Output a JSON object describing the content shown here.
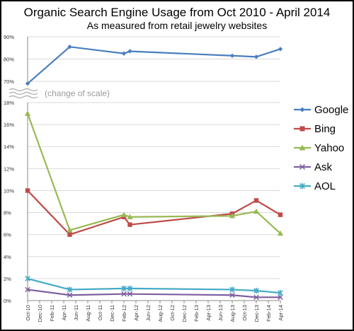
{
  "chart_data": {
    "type": "line",
    "title": "Organic Search Engine Usage from Oct 2010 - April 2014",
    "subtitle": "As measured from retail jewelry websites",
    "scale_break_note": "(change of scale)",
    "x": [
      "Oct-10",
      "Dec-10",
      "Feb-11",
      "Apr-11",
      "Jun-11",
      "Aug-11",
      "Oct-11",
      "Dec-11",
      "Feb-12",
      "Apr-12",
      "Jun-12",
      "Aug-12",
      "Oct-12",
      "Dec-12",
      "Feb-13",
      "Apr-13",
      "Jun-13",
      "Aug-13",
      "Oct-13",
      "Dec-13",
      "Feb-14",
      "Apr-14"
    ],
    "upper_axis": {
      "ylim": [
        70,
        90
      ],
      "ticks": [
        "70%",
        "80%",
        "90%"
      ]
    },
    "lower_axis": {
      "ylim": [
        0,
        18
      ],
      "ticks": [
        "0%",
        "2%",
        "4%",
        "6%",
        "8%",
        "10%",
        "12%",
        "14%",
        "16%",
        "18%"
      ]
    },
    "series": [
      {
        "name": "Google",
        "color": "#4a7ebf",
        "marker": "diamond",
        "axis": "upper",
        "points": [
          [
            "Oct-10",
            69.0
          ],
          [
            "May-11",
            85.5
          ],
          [
            "Feb-12",
            82.5
          ],
          [
            "Mar-12",
            83.5
          ],
          [
            "Aug-13",
            81.5
          ],
          [
            "Dec-13",
            81.0
          ],
          [
            "Apr-14",
            84.5
          ]
        ]
      },
      {
        "name": "Bing",
        "color": "#be4b48",
        "marker": "square",
        "axis": "lower",
        "points": [
          [
            "Oct-10",
            10.0
          ],
          [
            "May-11",
            6.0
          ],
          [
            "Feb-12",
            7.6
          ],
          [
            "Mar-12",
            6.9
          ],
          [
            "Aug-13",
            7.9
          ],
          [
            "Dec-13",
            9.1
          ],
          [
            "Apr-14",
            7.8
          ]
        ]
      },
      {
        "name": "Yahoo",
        "color": "#98b954",
        "marker": "triangle",
        "axis": "lower",
        "points": [
          [
            "Oct-10",
            17.0
          ],
          [
            "May-11",
            6.4
          ],
          [
            "Feb-12",
            7.8
          ],
          [
            "Mar-12",
            7.6
          ],
          [
            "Aug-13",
            7.7
          ],
          [
            "Dec-13",
            8.1
          ],
          [
            "Apr-14",
            6.1
          ]
        ]
      },
      {
        "name": "Ask",
        "color": "#7d5fa0",
        "marker": "x",
        "axis": "lower",
        "points": [
          [
            "Oct-10",
            1.0
          ],
          [
            "May-11",
            0.5
          ],
          [
            "Feb-12",
            0.6
          ],
          [
            "Mar-12",
            0.6
          ],
          [
            "Aug-13",
            0.5
          ],
          [
            "Dec-13",
            0.3
          ],
          [
            "Apr-14",
            0.3
          ]
        ]
      },
      {
        "name": "AOL",
        "color": "#46aac5",
        "marker": "star",
        "axis": "lower",
        "points": [
          [
            "Oct-10",
            2.0
          ],
          [
            "May-11",
            1.0
          ],
          [
            "Feb-12",
            1.1
          ],
          [
            "Mar-12",
            1.1
          ],
          [
            "Aug-13",
            1.0
          ],
          [
            "Dec-13",
            0.9
          ],
          [
            "Apr-14",
            0.7
          ]
        ]
      }
    ],
    "legend_position": "right",
    "grid": true
  }
}
